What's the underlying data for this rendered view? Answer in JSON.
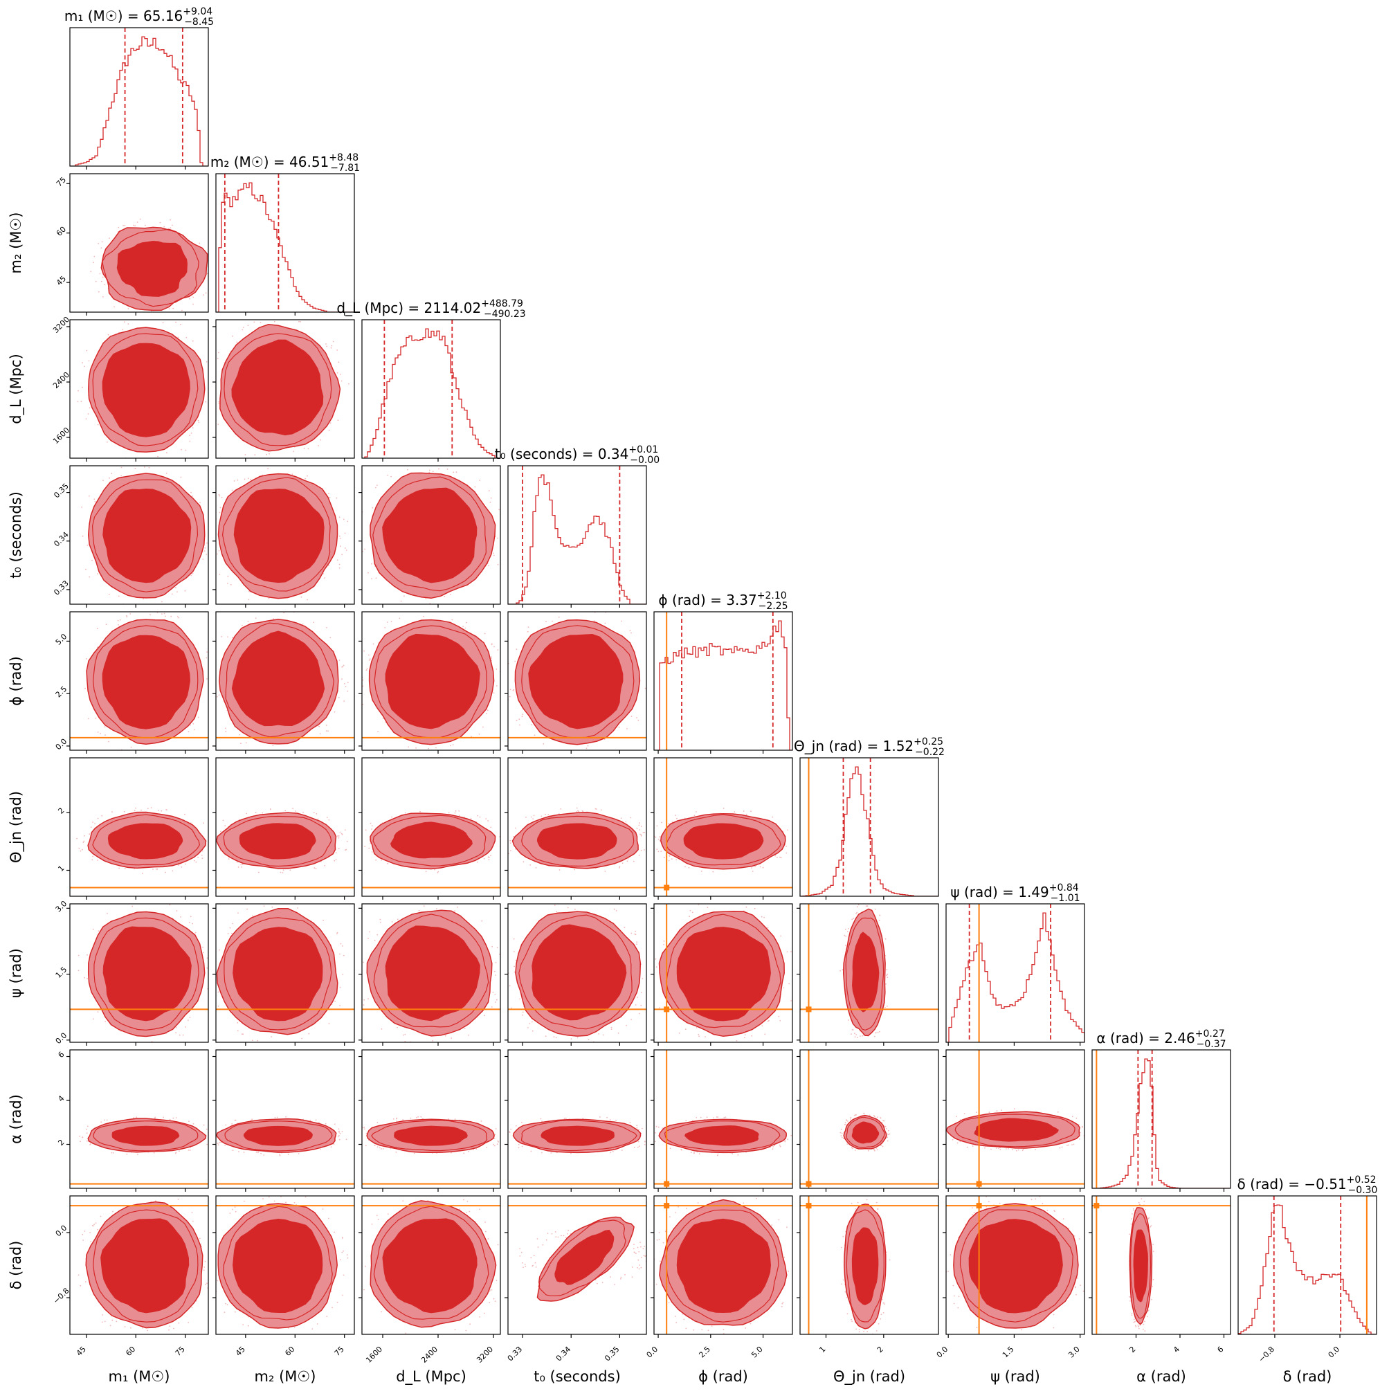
{
  "chart_data": {
    "type": "corner",
    "colors": {
      "posterior": "#d62728",
      "contour_inner": "#d62728",
      "contour_outer": "#e88e92",
      "truth": "#ff7f0e",
      "quantile": "#d62728"
    },
    "parameters": [
      {
        "key": "m1",
        "label": "m₁ (M☉)",
        "range": [
          40,
          82
        ],
        "ticks": [
          45,
          60,
          75
        ],
        "tick_labels": [
          "45",
          "60",
          "75"
        ],
        "median": 65.16,
        "plus": "+9.04",
        "minus": "−8.45",
        "title_value": "65.16",
        "truth": null,
        "title": "m₁ (M☉) = 65.16"
      },
      {
        "key": "m2",
        "label": "m₂ (M☉)",
        "range": [
          36,
          78
        ],
        "ticks": [
          45,
          60,
          75
        ],
        "tick_labels": [
          "45",
          "60",
          "75"
        ],
        "median": 46.51,
        "plus": "+8.48",
        "minus": "−7.81",
        "title_value": "46.51",
        "truth": null,
        "title": "m₂ (M☉) = 46.51"
      },
      {
        "key": "dL",
        "label": "d_L (Mpc)",
        "range": [
          1300,
          3300
        ],
        "ticks": [
          1600,
          2400,
          3200
        ],
        "tick_labels": [
          "1600",
          "2400",
          "3200"
        ],
        "median": 2114.02,
        "plus": "+488.79",
        "minus": "−490.23",
        "title_value": "2114.02",
        "truth": null,
        "title": "d_L (Mpc) = 2114.02"
      },
      {
        "key": "t0",
        "label": "t₀ (seconds)",
        "range": [
          0.327,
          0.3555
        ],
        "ticks": [
          0.33,
          0.34,
          0.35
        ],
        "tick_labels": [
          "0.33",
          "0.34",
          "0.35"
        ],
        "median": 0.34,
        "plus": "+0.01",
        "minus": "−0.00",
        "title_value": "0.34",
        "truth": null,
        "title": "t₀ (seconds) = 0.34"
      },
      {
        "key": "phi",
        "label": "ϕ (rad)",
        "range": [
          -0.2,
          6.4
        ],
        "ticks": [
          0,
          2.5,
          5
        ],
        "tick_labels": [
          "0.0",
          "2.5",
          "5.0"
        ],
        "median": 3.37,
        "plus": "+2.10",
        "minus": "−2.25",
        "title_value": "3.37",
        "truth": 0.4,
        "title": "ϕ (rad) = 3.37"
      },
      {
        "key": "theta",
        "label": "Θ_jn (rad)",
        "range": [
          0.55,
          2.95
        ],
        "ticks": [
          1,
          2
        ],
        "tick_labels": [
          "1",
          "2"
        ],
        "median": 1.52,
        "plus": "+0.25",
        "minus": "−0.22",
        "title_value": "1.52",
        "truth": 0.7,
        "title": "Θ_jn (rad) = 1.52"
      },
      {
        "key": "psi",
        "label": "ψ (rad)",
        "range": [
          -0.05,
          3.1
        ],
        "ticks": [
          0,
          1.5,
          3
        ],
        "tick_labels": [
          "0.0",
          "1.5",
          "3.0"
        ],
        "median": 1.49,
        "plus": "+0.84",
        "minus": "−1.01",
        "title_value": "1.49",
        "truth": 0.7,
        "title": "ψ (rad) = 1.49"
      },
      {
        "key": "alpha",
        "label": "α (rad)",
        "range": [
          0.0,
          6.3
        ],
        "ticks": [
          2,
          4,
          6
        ],
        "tick_labels": [
          "2",
          "4",
          "6"
        ],
        "median": 2.46,
        "plus": "+0.27",
        "minus": "−0.37",
        "title_value": "2.46",
        "truth": 0.2,
        "title": "α (rad) = 2.46"
      },
      {
        "key": "delta",
        "label": "δ (rad)",
        "range": [
          -1.25,
          0.45
        ],
        "ticks": [
          -0.8,
          0.0
        ],
        "tick_labels": [
          "−0.8",
          "0.0"
        ],
        "median": -0.51,
        "plus": "+0.52",
        "minus": "−0.30",
        "title_value": "−0.51",
        "truth": 0.33,
        "title": "δ (rad) = −0.51"
      }
    ],
    "marginals": {
      "m1": {
        "shape": [
          [
            42,
            0.01
          ],
          [
            45,
            0.03
          ],
          [
            48,
            0.08
          ],
          [
            50,
            0.25
          ],
          [
            52,
            0.45
          ],
          [
            54,
            0.62
          ],
          [
            56,
            0.78
          ],
          [
            58,
            0.9
          ],
          [
            60,
            0.96
          ],
          [
            62,
            1.0
          ],
          [
            64,
            0.98
          ],
          [
            66,
            1.0
          ],
          [
            68,
            0.97
          ],
          [
            70,
            0.88
          ],
          [
            72,
            0.78
          ],
          [
            74,
            0.68
          ],
          [
            76,
            0.62
          ],
          [
            78,
            0.48
          ],
          [
            79,
            0.3
          ],
          [
            80,
            0.0
          ]
        ],
        "q": [
          56.71,
          74.2
        ]
      },
      "m2": {
        "shape": [
          [
            37,
            0.05
          ],
          [
            37.5,
            0.9
          ],
          [
            38.5,
            0.88
          ],
          [
            40,
            0.85
          ],
          [
            42,
            0.88
          ],
          [
            44,
            0.92
          ],
          [
            46,
            0.96
          ],
          [
            48,
            0.92
          ],
          [
            50,
            0.85
          ],
          [
            52,
            0.75
          ],
          [
            54,
            0.62
          ],
          [
            56,
            0.48
          ],
          [
            58,
            0.33
          ],
          [
            60,
            0.2
          ],
          [
            62,
            0.11
          ],
          [
            64,
            0.06
          ],
          [
            66,
            0.03
          ],
          [
            68,
            0.015
          ],
          [
            70,
            0.005
          ]
        ],
        "q": [
          38.7,
          54.99
        ]
      },
      "dL": {
        "shape": [
          [
            1350,
            0.0
          ],
          [
            1400,
            0.05
          ],
          [
            1500,
            0.18
          ],
          [
            1600,
            0.4
          ],
          [
            1700,
            0.6
          ],
          [
            1800,
            0.75
          ],
          [
            1900,
            0.85
          ],
          [
            2000,
            0.9
          ],
          [
            2100,
            0.95
          ],
          [
            2200,
            0.97
          ],
          [
            2300,
            0.95
          ],
          [
            2400,
            0.96
          ],
          [
            2500,
            0.9
          ],
          [
            2600,
            0.68
          ],
          [
            2700,
            0.5
          ],
          [
            2800,
            0.35
          ],
          [
            2900,
            0.2
          ],
          [
            3000,
            0.1
          ],
          [
            3100,
            0.05
          ],
          [
            3200,
            0.02
          ]
        ],
        "q": [
          1623.8,
          2602.8
        ]
      },
      "t0": {
        "shape": [
          [
            0.3285,
            0.0
          ],
          [
            0.3295,
            0.02
          ],
          [
            0.331,
            0.15
          ],
          [
            0.332,
            0.5
          ],
          [
            0.333,
            0.85
          ],
          [
            0.334,
            1.0
          ],
          [
            0.335,
            0.9
          ],
          [
            0.336,
            0.7
          ],
          [
            0.337,
            0.55
          ],
          [
            0.338,
            0.45
          ],
          [
            0.339,
            0.42
          ],
          [
            0.34,
            0.45
          ],
          [
            0.341,
            0.42
          ],
          [
            0.342,
            0.46
          ],
          [
            0.343,
            0.52
          ],
          [
            0.344,
            0.6
          ],
          [
            0.345,
            0.65
          ],
          [
            0.346,
            0.62
          ],
          [
            0.347,
            0.55
          ],
          [
            0.348,
            0.45
          ],
          [
            0.349,
            0.3
          ],
          [
            0.35,
            0.15
          ],
          [
            0.351,
            0.07
          ],
          [
            0.352,
            0.03
          ]
        ],
        "q": [
          0.33,
          0.35
        ]
      },
      "phi": {
        "shape": [
          [
            0,
            0.0
          ],
          [
            0.05,
            0.6
          ],
          [
            0.3,
            0.62
          ],
          [
            0.8,
            0.65
          ],
          [
            1.3,
            0.68
          ],
          [
            2.0,
            0.68
          ],
          [
            2.5,
            0.7
          ],
          [
            3.0,
            0.69
          ],
          [
            3.5,
            0.67
          ],
          [
            4.0,
            0.69
          ],
          [
            4.5,
            0.7
          ],
          [
            5.0,
            0.72
          ],
          [
            5.4,
            0.8
          ],
          [
            5.8,
            0.9
          ],
          [
            6.1,
            0.7
          ],
          [
            6.25,
            0.0
          ]
        ],
        "q": [
          1.12,
          5.47
        ]
      },
      "theta": {
        "shape": [
          [
            0.6,
            0.0
          ],
          [
            0.9,
            0.02
          ],
          [
            1.1,
            0.08
          ],
          [
            1.25,
            0.3
          ],
          [
            1.35,
            0.65
          ],
          [
            1.45,
            0.92
          ],
          [
            1.52,
            1.0
          ],
          [
            1.6,
            0.9
          ],
          [
            1.7,
            0.65
          ],
          [
            1.8,
            0.35
          ],
          [
            1.9,
            0.15
          ],
          [
            2.0,
            0.06
          ],
          [
            2.2,
            0.02
          ],
          [
            2.5,
            0.005
          ]
        ],
        "q": [
          1.3,
          1.77
        ]
      },
      "psi": {
        "shape": [
          [
            0.0,
            0.05
          ],
          [
            0.1,
            0.15
          ],
          [
            0.3,
            0.35
          ],
          [
            0.5,
            0.52
          ],
          [
            0.7,
            0.66
          ],
          [
            0.8,
            0.55
          ],
          [
            0.9,
            0.4
          ],
          [
            1.0,
            0.3
          ],
          [
            1.1,
            0.24
          ],
          [
            1.3,
            0.22
          ],
          [
            1.5,
            0.24
          ],
          [
            1.7,
            0.3
          ],
          [
            1.9,
            0.45
          ],
          [
            2.1,
            0.65
          ],
          [
            2.2,
            0.82
          ],
          [
            2.3,
            0.66
          ],
          [
            2.5,
            0.4
          ],
          [
            2.7,
            0.2
          ],
          [
            2.9,
            0.12
          ],
          [
            3.1,
            0.05
          ]
        ],
        "q": [
          0.48,
          2.33
        ]
      },
      "alpha": {
        "shape": [
          [
            0.3,
            0.0
          ],
          [
            0.8,
            0.01
          ],
          [
            1.2,
            0.03
          ],
          [
            1.6,
            0.1
          ],
          [
            1.9,
            0.3
          ],
          [
            2.1,
            0.6
          ],
          [
            2.3,
            0.85
          ],
          [
            2.45,
            0.95
          ],
          [
            2.6,
            1.0
          ],
          [
            2.75,
            0.6
          ],
          [
            2.9,
            0.2
          ],
          [
            3.1,
            0.05
          ],
          [
            3.5,
            0.01
          ],
          [
            4.0,
            0.0
          ]
        ],
        "q": [
          2.09,
          2.73
        ]
      },
      "delta": {
        "shape": [
          [
            -1.25,
            0.0
          ],
          [
            -1.1,
            0.05
          ],
          [
            -1.0,
            0.2
          ],
          [
            -0.9,
            0.5
          ],
          [
            -0.8,
            0.82
          ],
          [
            -0.75,
            0.86
          ],
          [
            -0.7,
            0.7
          ],
          [
            -0.6,
            0.5
          ],
          [
            -0.5,
            0.4
          ],
          [
            -0.4,
            0.35
          ],
          [
            -0.3,
            0.33
          ],
          [
            -0.2,
            0.36
          ],
          [
            -0.1,
            0.38
          ],
          [
            0.0,
            0.36
          ],
          [
            0.05,
            0.3
          ],
          [
            0.15,
            0.18
          ],
          [
            0.25,
            0.08
          ],
          [
            0.35,
            0.02
          ],
          [
            0.4,
            0.0
          ]
        ],
        "q": [
          -0.81,
          0.01
        ]
      }
    }
  }
}
